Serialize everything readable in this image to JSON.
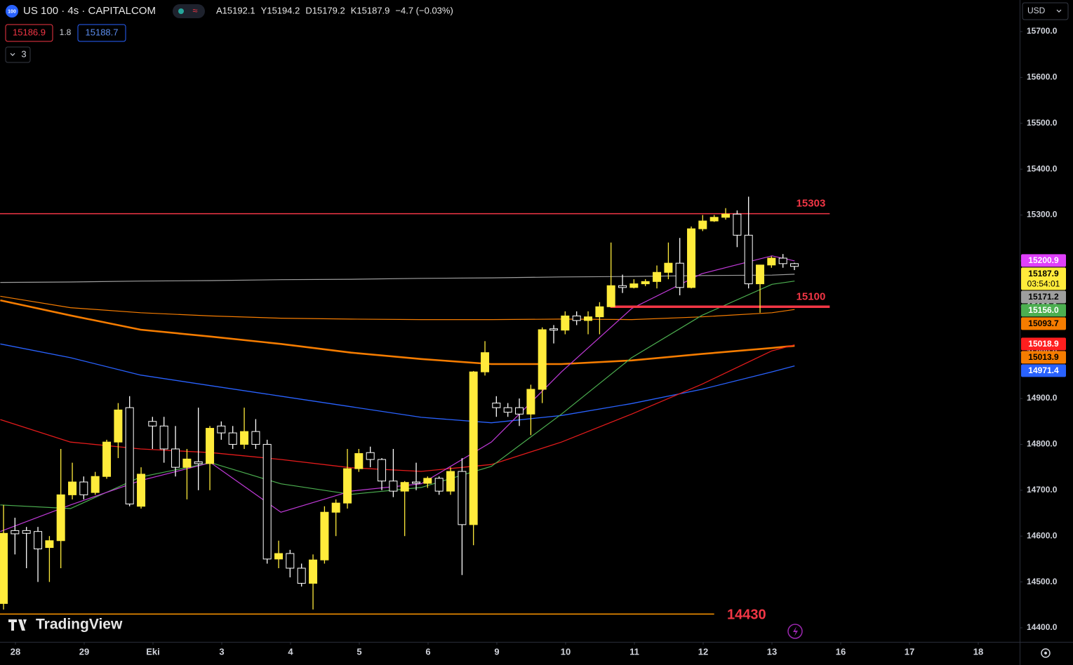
{
  "chart_data": {
    "type": "candlestick",
    "header": {
      "logo": "100",
      "title": "US 100 · 4s · CAPITALCOM",
      "ohlc": [
        "A15192.1",
        "Y15194.2",
        "D15179.2",
        "K15187.9",
        "−4.7 (−0.03%)"
      ],
      "bid": "15186.9",
      "spread": "1.8",
      "ask": "15188.7",
      "indicators": "3",
      "currency": "USD",
      "brand": "TradingView",
      "countdown": "03:54:01"
    },
    "xlim": [
      -0.2245,
      14.602
    ],
    "ylim": [
      14369.4,
      15768.8
    ],
    "xticks": [
      {
        "value": 0,
        "label": "28"
      },
      {
        "value": 1,
        "label": "29"
      },
      {
        "value": 2,
        "label": "Eki"
      },
      {
        "value": 3,
        "label": "3"
      },
      {
        "value": 4,
        "label": "4"
      },
      {
        "value": 5,
        "label": "5"
      },
      {
        "value": 6,
        "label": "6"
      },
      {
        "value": 7,
        "label": "9"
      },
      {
        "value": 8,
        "label": "10"
      },
      {
        "value": 9,
        "label": "11"
      },
      {
        "value": 10,
        "label": "12"
      },
      {
        "value": 11,
        "label": "13"
      },
      {
        "value": 12,
        "label": "16"
      },
      {
        "value": 13,
        "label": "17"
      },
      {
        "value": 14,
        "label": "18"
      }
    ],
    "yticks": [
      {
        "value": 14400,
        "label": "14400.0"
      },
      {
        "value": 14500,
        "label": "14500.0"
      },
      {
        "value": 14600,
        "label": "14600.0"
      },
      {
        "value": 14700,
        "label": "14700.0"
      },
      {
        "value": 14800,
        "label": "14800.0"
      },
      {
        "value": 14900,
        "label": "14900.0"
      },
      {
        "value": 15000,
        "label": "15000.0"
      },
      {
        "value": 15100,
        "label": "15100.0"
      },
      {
        "value": 15200,
        "label": "15200.0"
      },
      {
        "value": 15300,
        "label": "15300.0"
      },
      {
        "value": 15400,
        "label": "15400.0"
      },
      {
        "value": 15500,
        "label": "15500.0"
      },
      {
        "value": 15600,
        "label": "15600.0"
      },
      {
        "value": 15700,
        "label": "15700.0"
      }
    ],
    "up_color": "#ffeb3b",
    "down_color": "#ffffff",
    "x": [
      -0.173,
      -0.007,
      0.16,
      0.327,
      0.494,
      0.66,
      0.827,
      0.993,
      1.16,
      1.327,
      1.494,
      1.66,
      1.827,
      1.993,
      2.16,
      2.327,
      2.494,
      2.66,
      2.827,
      2.993,
      3.16,
      3.327,
      3.494,
      3.66,
      3.827,
      3.993,
      4.16,
      4.327,
      4.494,
      4.66,
      4.827,
      4.993,
      5.16,
      5.327,
      5.494,
      5.66,
      5.827,
      5.993,
      6.16,
      6.327,
      6.494,
      6.66,
      6.827,
      6.993,
      7.16,
      7.327,
      7.494,
      7.66,
      7.827,
      7.993,
      8.16,
      8.327,
      8.494,
      8.66,
      8.827,
      8.993,
      9.16,
      9.327,
      9.494,
      9.66,
      9.827,
      9.993,
      10.16,
      10.327,
      10.494,
      10.66,
      10.827,
      10.993,
      11.16,
      11.327
    ],
    "open": [
      14453,
      14612,
      14612,
      14610,
      14575,
      14590,
      14690,
      14718,
      14695,
      14730,
      14805,
      14880,
      14665,
      14850,
      14840,
      14790,
      14750,
      14762,
      14758,
      14840,
      14825,
      14800,
      14828,
      14800,
      14550,
      14562,
      14530,
      14497,
      14548,
      14652,
      14672,
      14747,
      14782,
      14767,
      14720,
      14698,
      14718,
      14715,
      14726,
      14698,
      14741,
      14625,
      14958,
      14890,
      14880,
      14880,
      14866,
      14920,
      15052,
      15049,
      15080,
      15070,
      15078,
      15100,
      15146,
      15142,
      15150,
      15155,
      15175,
      15195,
      15142,
      15270,
      15287,
      15295,
      15302,
      15256,
      15150,
      15191,
      15206,
      15194
    ],
    "high": [
      14668,
      14640,
      14620,
      14620,
      14600,
      14790,
      14760,
      14730,
      14740,
      14810,
      14890,
      14905,
      14750,
      14860,
      14860,
      14840,
      14790,
      14880,
      14840,
      14850,
      14840,
      14880,
      14855,
      14810,
      14590,
      14570,
      14540,
      14560,
      14665,
      14680,
      14790,
      14790,
      14795,
      14770,
      14790,
      14720,
      14760,
      14730,
      14730,
      14750,
      14770,
      14960,
      15025,
      14905,
      14890,
      14900,
      14930,
      15055,
      15060,
      15090,
      15090,
      15090,
      15110,
      15240,
      15170,
      15160,
      15160,
      15190,
      15240,
      15250,
      15275,
      15300,
      15300,
      15315,
      15310,
      15340,
      15191,
      15210,
      15215,
      15196
    ],
    "low": [
      14440,
      14560,
      14530,
      14500,
      14500,
      14530,
      14680,
      14680,
      14690,
      14725,
      14770,
      14665,
      14660,
      14790,
      14760,
      14730,
      14680,
      14700,
      14700,
      14810,
      14790,
      14790,
      14790,
      14540,
      14530,
      14510,
      14490,
      14440,
      14540,
      14600,
      14660,
      14740,
      14750,
      14700,
      14685,
      14600,
      14700,
      14705,
      14690,
      14690,
      14515,
      14580,
      14950,
      14860,
      14860,
      14840,
      14820,
      14890,
      15020,
      15040,
      15060,
      15040,
      15040,
      15100,
      15130,
      15140,
      15145,
      15140,
      15160,
      15125,
      15140,
      15265,
      15285,
      15290,
      15230,
      15140,
      15087,
      15185,
      15185,
      15180
    ],
    "close": [
      14606,
      14605,
      14606,
      14572,
      14590,
      14690,
      14718,
      14690,
      14730,
      14805,
      14875,
      14670,
      14735,
      14840,
      14790,
      14750,
      14768,
      14758,
      14835,
      14825,
      14800,
      14828,
      14800,
      14550,
      14562,
      14530,
      14497,
      14548,
      14652,
      14672,
      14747,
      14780,
      14767,
      14720,
      14698,
      14717,
      14715,
      14726,
      14698,
      14741,
      14625,
      14958,
      15000,
      14880,
      14870,
      14866,
      14920,
      15050,
      15049,
      15080,
      15070,
      15078,
      15100,
      15146,
      15142,
      15150,
      15155,
      15175,
      15195,
      15142,
      15270,
      15287,
      15295,
      15302,
      15256,
      15150,
      15191,
      15206,
      15194,
      15188
    ],
    "lines": [
      {
        "color": "#9e9e9e",
        "width": 1.2,
        "x": [
          -0.22,
          0.8,
          1.82,
          2.84,
          3.86,
          4.88,
          5.9,
          6.92,
          7.94,
          8.96,
          9.98,
          11,
          11.33
        ],
        "values": [
          15153,
          15154,
          15156,
          15157,
          15159,
          15160,
          15162,
          15163,
          15165,
          15166,
          15168,
          15169,
          15171
        ]
      },
      {
        "color": "#f57c00",
        "width": 1.2,
        "x": [
          -0.22,
          0.8,
          1.82,
          2.84,
          3.86,
          4.88,
          5.9,
          6.92,
          7.94,
          8.96,
          9.98,
          11,
          11.33
        ],
        "values": [
          15123,
          15098,
          15087,
          15080,
          15075,
          15073,
          15072,
          15072,
          15073,
          15072,
          15078,
          15087,
          15094
        ]
      },
      {
        "color": "#f57c00",
        "width": 2.6,
        "x": [
          -0.22,
          0.8,
          1.82,
          2.84,
          3.86,
          4.88,
          5.9,
          6.92,
          7.94,
          8.96,
          9.98,
          11,
          11.33
        ],
        "values": [
          15114,
          15081,
          15050,
          15035,
          15019,
          15000,
          14986,
          14975,
          14975,
          14983,
          14997,
          15010,
          15015
        ]
      },
      {
        "color": "#2962ff",
        "width": 1.3,
        "x": [
          -0.22,
          0.8,
          1.82,
          2.84,
          3.86,
          4.88,
          5.9,
          6.92,
          7.94,
          8.96,
          9.98,
          11,
          11.33
        ],
        "values": [
          15019,
          14989,
          14951,
          14928,
          14905,
          14882,
          14859,
          14847,
          14863,
          14889,
          14920,
          14958,
          14971
        ]
      },
      {
        "color": "#e31b1b",
        "width": 1.3,
        "x": [
          -0.22,
          0.8,
          1.82,
          2.84,
          3.86,
          4.88,
          5.9,
          6.92,
          7.94,
          8.96,
          9.98,
          11,
          11.33
        ],
        "values": [
          14854,
          14805,
          14790,
          14782,
          14767,
          14749,
          14741,
          14756,
          14805,
          14866,
          14931,
          15004,
          15017
        ]
      },
      {
        "color": "#4caf50",
        "width": 1.2,
        "x": [
          -0.22,
          0.8,
          1.82,
          2.84,
          3.86,
          4.88,
          5.9,
          6.92,
          7.94,
          8.96,
          9.98,
          11,
          11.33
        ],
        "values": [
          14668,
          14660,
          14729,
          14760,
          14714,
          14691,
          14706,
          14752,
          14866,
          14989,
          15081,
          15149,
          15156
        ]
      },
      {
        "color": "#c03ad8",
        "width": 1.2,
        "x": [
          -0.22,
          0.8,
          1.82,
          2.84,
          3.86,
          4.88,
          5.9,
          6.92,
          7.94,
          8.96,
          9.98,
          11,
          11.33
        ],
        "values": [
          14610,
          14668,
          14721,
          14760,
          14652,
          14698,
          14714,
          14805,
          14958,
          15096,
          15172,
          15211,
          15200
        ]
      }
    ],
    "levels": [
      {
        "value": 15303,
        "color": "#f23645",
        "label_color": "#f23645",
        "width": 1.5,
        "x": [
          -0.2245,
          11.84
        ]
      },
      {
        "value": 15100,
        "color": "#f23645",
        "label_color": "#f23645",
        "width": 3.5,
        "x": [
          8.65,
          11.84
        ]
      },
      {
        "value": 14430,
        "color": "#ff9800",
        "label_color": "#f23645",
        "width": 1.5,
        "x": [
          -0.2245,
          10.16
        ]
      }
    ],
    "price_tags": [
      {
        "value": 15200.9,
        "label": "15200.9",
        "color": "#e040fb",
        "text_color": "#ffffff"
      },
      {
        "value": 15187.9,
        "label": "15187.9",
        "color": "#ffeb3b",
        "text_color": "#000000"
      },
      {
        "value": 15171.2,
        "label": "15171.2",
        "color": "#9e9e9e",
        "text_color": "#000000"
      },
      {
        "value": 15156.0,
        "label": "15156.0",
        "color": "#4caf50",
        "text_color": "#ffffff"
      },
      {
        "value": 15093.7,
        "label": "15093.7",
        "color": "#f57c00",
        "text_color": "#000000"
      },
      {
        "value": 15018.9,
        "label": "15018.9",
        "color": "#ff1f1f",
        "text_color": "#ffffff"
      },
      {
        "value": 15013.9,
        "label": "15013.9",
        "color": "#f57c00",
        "text_color": "#000000"
      },
      {
        "value": 14971.4,
        "label": "14971.4",
        "color": "#2962ff",
        "text_color": "#ffffff"
      }
    ]
  }
}
